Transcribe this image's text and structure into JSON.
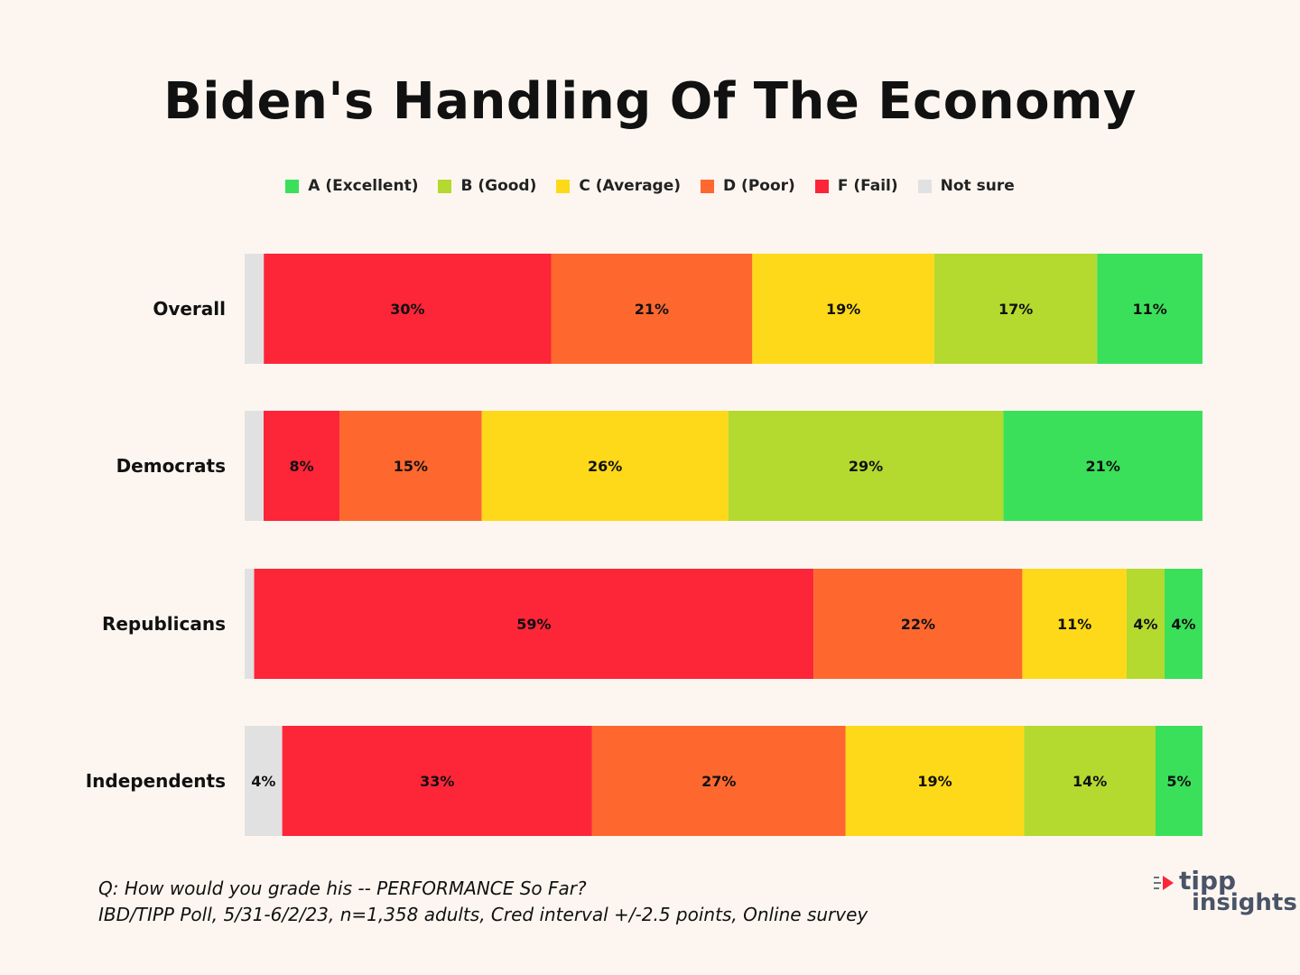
{
  "title": "Biden's Handling Of The Economy",
  "legend": [
    {
      "label": "A (Excellent)",
      "color": "#3ae05a"
    },
    {
      "label": "B (Good)",
      "color": "#b4d92f"
    },
    {
      "label": "C (Average)",
      "color": "#fdd919"
    },
    {
      "label": "D (Poor)",
      "color": "#fe682f"
    },
    {
      "label": "F (Fail)",
      "color": "#fd2538"
    },
    {
      "label": "Not sure",
      "color": "#e1e1e1"
    }
  ],
  "chart_data": {
    "type": "bar",
    "orientation": "horizontal",
    "stacked": true,
    "title": "Biden's Handling Of The Economy",
    "categories": [
      "Overall",
      "Democrats",
      "Republicans",
      "Independents"
    ],
    "series_order": [
      "Not sure",
      "F (Fail)",
      "D (Poor)",
      "C (Average)",
      "B (Good)",
      "A (Excellent)"
    ],
    "series": [
      {
        "name": "Not sure",
        "color": "#e1e1e1",
        "values": [
          2,
          2,
          1,
          4
        ],
        "labels": [
          "",
          "",
          "",
          "4%"
        ]
      },
      {
        "name": "F (Fail)",
        "color": "#fd2538",
        "values": [
          30,
          8,
          59,
          33
        ],
        "labels": [
          "30%",
          "8%",
          "59%",
          "33%"
        ]
      },
      {
        "name": "D (Poor)",
        "color": "#fe682f",
        "values": [
          21,
          15,
          22,
          27
        ],
        "labels": [
          "21%",
          "15%",
          "22%",
          "27%"
        ]
      },
      {
        "name": "C (Average)",
        "color": "#fdd919",
        "values": [
          19,
          26,
          11,
          19
        ],
        "labels": [
          "19%",
          "26%",
          "11%",
          "19%"
        ]
      },
      {
        "name": "B (Good)",
        "color": "#b4d92f",
        "values": [
          17,
          29,
          4,
          14
        ],
        "labels": [
          "17%",
          "29%",
          "4%",
          "14%"
        ]
      },
      {
        "name": "A (Excellent)",
        "color": "#3ae05a",
        "values": [
          11,
          21,
          4,
          5
        ],
        "labels": [
          "11%",
          "21%",
          "4%",
          "5%"
        ]
      }
    ],
    "xlim": [
      0,
      100
    ],
    "grid": false,
    "legend_position": "top"
  },
  "footer": {
    "line1": "Q:  How would you grade his -- PERFORMANCE So Far?",
    "line2": "IBD/TIPP Poll, 5/31-6/2/23, n=1,358 adults, Cred interval +/-2.5 points, Online survey"
  },
  "logo": {
    "line1": "tipp",
    "line2": "insights"
  }
}
